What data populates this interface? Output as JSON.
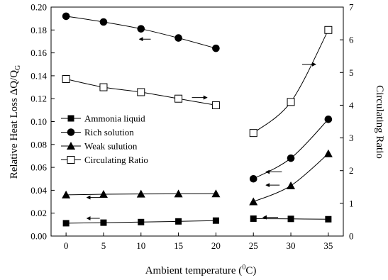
{
  "chart_data": {
    "type": "line",
    "xlabel": "Ambient temperature (",
    "xlabel_sup": "0",
    "xlabel_tail": "C)",
    "ylabel": "Relative Heat Loss ΔQ/Q",
    "ylabel_sub": "G",
    "y2label": "Circulating Ratio",
    "x_ticks": [
      "0",
      "5",
      "10",
      "15",
      "20",
      "25",
      "30",
      "35"
    ],
    "y_ticks": [
      "0.00",
      "0.02",
      "0.04",
      "0.06",
      "0.08",
      "0.10",
      "0.12",
      "0.14",
      "0.16",
      "0.18",
      "0.20"
    ],
    "y2_ticks": [
      "0",
      "1",
      "2",
      "3",
      "4",
      "5",
      "6",
      "7"
    ],
    "xlim": [
      -2,
      37
    ],
    "ylim": [
      0,
      0.2
    ],
    "y2lim": [
      0,
      7
    ],
    "grid": false,
    "legend_position": "left-middle",
    "series": [
      {
        "name": "Ammonia liquid",
        "marker": "square-filled",
        "axis": "left",
        "segments": [
          {
            "x": [
              0,
              5,
              10,
              15,
              20
            ],
            "y": [
              0.0112,
              0.0117,
              0.0122,
              0.0128,
              0.0135
            ]
          },
          {
            "x": [
              25,
              30,
              35
            ],
            "y": [
              0.0152,
              0.015,
              0.0147
            ]
          }
        ]
      },
      {
        "name": "Rich solution",
        "marker": "circle-filled",
        "axis": "left",
        "segments": [
          {
            "x": [
              0,
              5,
              10,
              15,
              20
            ],
            "y": [
              0.192,
              0.187,
              0.181,
              0.173,
              0.164
            ]
          },
          {
            "x": [
              25,
              30,
              35
            ],
            "y": [
              0.05,
              0.068,
              0.102
            ]
          }
        ]
      },
      {
        "name": "Weak sulution",
        "marker": "triangle-filled",
        "axis": "left",
        "segments": [
          {
            "x": [
              0,
              5,
              10,
              15,
              20
            ],
            "y": [
              0.036,
              0.0365,
              0.0368,
              0.0369,
              0.037
            ]
          },
          {
            "x": [
              25,
              30,
              35
            ],
            "y": [
              0.03,
              0.044,
              0.072
            ]
          }
        ]
      },
      {
        "name": "Circulating Ratio",
        "marker": "square-open",
        "axis": "right",
        "segments": [
          {
            "x": [
              0,
              5,
              10,
              15,
              20
            ],
            "y": [
              4.8,
              4.55,
              4.4,
              4.2,
              4.0
            ]
          },
          {
            "x": [
              25,
              30,
              35
            ],
            "y": [
              3.15,
              4.1,
              6.3
            ]
          }
        ]
      }
    ],
    "annotations": [
      {
        "type": "arrow",
        "direction": "left",
        "x_from": 11.3,
        "x_to": 9.8,
        "y": 0.172
      },
      {
        "type": "arrow",
        "direction": "right",
        "x_from": 16.8,
        "x_to": 18.8,
        "y": 0.121
      },
      {
        "type": "arrow",
        "direction": "left",
        "x_from": 4.5,
        "x_to": 2.8,
        "y": 0.0155
      },
      {
        "type": "arrow",
        "direction": "left",
        "x_from": 4.5,
        "x_to": 2.8,
        "y": 0.0337
      },
      {
        "type": "arrow",
        "direction": "right",
        "x_from": 31.5,
        "x_to": 33.3,
        "y": 0.15
      },
      {
        "type": "arrow",
        "direction": "left",
        "x_from": 28.8,
        "x_to": 26.7,
        "y": 0.056
      },
      {
        "type": "arrow",
        "direction": "left",
        "x_from": 28.5,
        "x_to": 26.7,
        "y": 0.0445
      },
      {
        "type": "arrow",
        "direction": "left",
        "x_from": 28.3,
        "x_to": 26.3,
        "y": 0.0163
      }
    ]
  }
}
